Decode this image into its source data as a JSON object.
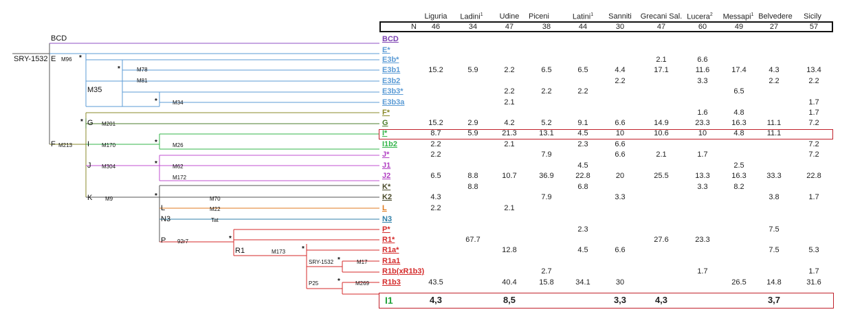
{
  "table": {
    "n_label": "N",
    "populations": [
      {
        "name": "Liguria",
        "sup": "",
        "n": "46"
      },
      {
        "name": "Ladini",
        "sup": "1",
        "n": "34"
      },
      {
        "name": "Udine",
        "sup": "",
        "n": "47"
      },
      {
        "name": "Piceni",
        "sup": "",
        "n": "38"
      },
      {
        "name": "Latini",
        "sup": "1",
        "n": "44"
      },
      {
        "name": "Sanniti",
        "sup": "",
        "n": "30"
      },
      {
        "name": "Grecani Sal.",
        "sup": "",
        "n": "47"
      },
      {
        "name": "Lucera",
        "sup": "2",
        "n": "60"
      },
      {
        "name": "Messapi",
        "sup": "1",
        "n": "49"
      },
      {
        "name": "Belvedere",
        "sup": "",
        "n": "27"
      },
      {
        "name": "Sicily",
        "sup": "",
        "n": "57"
      }
    ],
    "rows": [
      {
        "hap": "BCD",
        "color": "#7a3fb0",
        "values": [
          "",
          "",
          "",
          "",
          "",
          "",
          "",
          "",
          "",
          "",
          ""
        ]
      },
      {
        "hap": "E*",
        "color": "#5b9bd5",
        "values": [
          "",
          "",
          "",
          "",
          "",
          "",
          "",
          "",
          "",
          "",
          ""
        ]
      },
      {
        "hap": "E3b*",
        "color": "#5b9bd5",
        "values": [
          "",
          "",
          "",
          "",
          "",
          "",
          "2.1",
          "6.6",
          "",
          "",
          ""
        ]
      },
      {
        "hap": "E3b1",
        "color": "#5b9bd5",
        "values": [
          "15.2",
          "5.9",
          "2.2",
          "6.5",
          "6.5",
          "4.4",
          "17.1",
          "11.6",
          "17.4",
          "4.3",
          "13.4"
        ]
      },
      {
        "hap": "E3b2",
        "color": "#5b9bd5",
        "values": [
          "",
          "",
          "",
          "",
          "",
          "2.2",
          "",
          "3.3",
          "",
          "2.2",
          "2.2"
        ]
      },
      {
        "hap": "E3b3*",
        "color": "#5b9bd5",
        "values": [
          "",
          "",
          "2.2",
          "2.2",
          "2.2",
          "",
          "",
          "",
          "6.5",
          "",
          ""
        ]
      },
      {
        "hap": "E3b3a",
        "color": "#5b9bd5",
        "values": [
          "",
          "",
          "2.1",
          "",
          "",
          "",
          "",
          "",
          "",
          "",
          "1.7"
        ]
      },
      {
        "hap": "F*",
        "color": "#8a8a2a",
        "values": [
          "",
          "",
          "",
          "",
          "",
          "",
          "",
          "1.6",
          "4.8",
          "",
          "1.7"
        ]
      },
      {
        "hap": "G",
        "color": "#4b7d2b",
        "values": [
          "15.2",
          "2.9",
          "4.2",
          "5.2",
          "9.1",
          "6.6",
          "14.9",
          "23.3",
          "16.3",
          "11.1",
          "7.2"
        ]
      },
      {
        "hap": "I*",
        "color": "#33b54a",
        "values": [
          "8.7",
          "5.9",
          "21.3",
          "13.1",
          "4.5",
          "10",
          "10.6",
          "10",
          "4.8",
          "11.1",
          ""
        ]
      },
      {
        "hap": "I1b2",
        "color": "#33b54a",
        "values": [
          "2.2",
          "",
          "2.1",
          "",
          "2.3",
          "6.6",
          "",
          "",
          "",
          "",
          "7.2"
        ]
      },
      {
        "hap": "J*",
        "color": "#b03ec2",
        "values": [
          "2.2",
          "",
          "",
          "7.9",
          "",
          "6.6",
          "2.1",
          "1.7",
          "",
          "",
          "7.2"
        ]
      },
      {
        "hap": "J1",
        "color": "#b03ec2",
        "values": [
          "",
          "",
          "",
          "",
          "4.5",
          "",
          "",
          "",
          "2.5",
          "",
          ""
        ]
      },
      {
        "hap": "J2",
        "color": "#b03ec2",
        "values": [
          "6.5",
          "8.8",
          "10.7",
          "36.9",
          "22.8",
          "20",
          "25.5",
          "13.3",
          "16.3",
          "33.3",
          "22.8"
        ]
      },
      {
        "hap": "K*",
        "color": "#4a4a2a",
        "values": [
          "",
          "8.8",
          "",
          "",
          "6.8",
          "",
          "",
          "3.3",
          "8.2",
          "",
          ""
        ]
      },
      {
        "hap": "K2",
        "color": "#4a4a2a",
        "values": [
          "4.3",
          "",
          "",
          "7.9",
          "",
          "3.3",
          "",
          "",
          "",
          "3.8",
          "1.7"
        ]
      },
      {
        "hap": "L",
        "color": "#e07a1f",
        "values": [
          "2.2",
          "",
          "2.1",
          "",
          "",
          "",
          "",
          "",
          "",
          "",
          ""
        ]
      },
      {
        "hap": "N3",
        "color": "#2f7fa8",
        "values": [
          "",
          "",
          "",
          "",
          "",
          "",
          "",
          "",
          "",
          "",
          ""
        ]
      },
      {
        "hap": "P*",
        "color": "#d42a2a",
        "values": [
          "",
          "",
          "",
          "",
          "2.3",
          "",
          "",
          "",
          "",
          "7.5",
          ""
        ]
      },
      {
        "hap": "R1*",
        "color": "#d42a2a",
        "values": [
          "",
          "67.7",
          "",
          "",
          "",
          "",
          "27.6",
          "23.3",
          "",
          "",
          ""
        ]
      },
      {
        "hap": "R1a*",
        "color": "#d42a2a",
        "values": [
          "",
          "",
          "12.8",
          "",
          "4.5",
          "6.6",
          "",
          "",
          "",
          "7.5",
          "5.3"
        ]
      },
      {
        "hap": "R1a1",
        "color": "#d42a2a",
        "values": [
          "",
          "",
          "",
          "",
          "",
          "",
          "",
          "",
          "",
          "",
          ""
        ]
      },
      {
        "hap": "R1b(xR1b3)",
        "color": "#d42a2a",
        "values": [
          "",
          "",
          "",
          "2.7",
          "",
          "",
          "",
          "1.7",
          "",
          "",
          "1.7"
        ]
      },
      {
        "hap": "R1b3",
        "color": "#d42a2a",
        "values": [
          "43.5",
          "",
          "40.4",
          "15.8",
          "34.1",
          "30",
          "",
          "",
          "26.5",
          "14.8",
          "31.6"
        ]
      }
    ],
    "summary": {
      "label": "I1",
      "values": [
        "4,3",
        "",
        "8,5",
        "",
        "",
        "3,3",
        "4,3",
        "",
        "",
        "3,7",
        ""
      ]
    }
  },
  "tree": {
    "labels": {
      "bcd": "BCD",
      "sry_root": "SRY-1532",
      "e": "E",
      "m96": "M96",
      "m78": "M78",
      "m81": "M81",
      "m35": "M35",
      "m34": "M34",
      "g": "G",
      "m201": "M201",
      "f": "F",
      "m213": "M213",
      "i": "I",
      "m170": "M170",
      "m26": "M26",
      "j": "J",
      "m304": "M304",
      "m62": "M62",
      "m172": "M172",
      "k": "K",
      "m9": "M9",
      "m70": "M70",
      "l": "L",
      "m22": "M22",
      "n3": "N3",
      "tat": "Tat",
      "p": "P",
      "p_marker": "92r7",
      "r1": "R1",
      "m173": "M173",
      "sry_r1a1": "SRY-1532",
      "m17": "M17",
      "p25": "P25",
      "m269": "M269",
      "star": "*"
    }
  }
}
